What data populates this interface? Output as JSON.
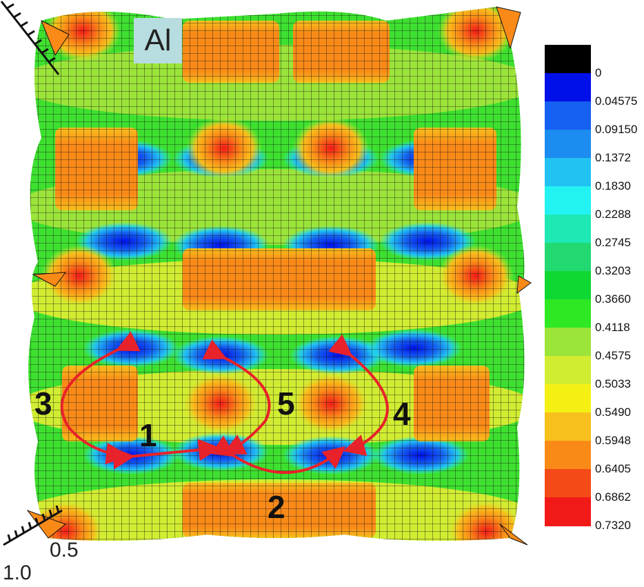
{
  "tag": "Al",
  "colorbar": {
    "labels": [
      "0",
      "0.04575",
      "0.09150",
      "0.1372",
      "0.1830",
      "0.2288",
      "0.2745",
      "0.3203",
      "0.3660",
      "0.4118",
      "0.4575",
      "0.5033",
      "0.5490",
      "0.5948",
      "0.6405",
      "0.6862",
      "0.7320"
    ],
    "colors": [
      "#000000",
      "#0010e8",
      "#1560f0",
      "#1c8cf0",
      "#22c2f2",
      "#22f2f2",
      "#1ee8b4",
      "#22d870",
      "#10d832",
      "#2ee824",
      "#9be43a",
      "#d2ec32",
      "#f4f014",
      "#f8c01c",
      "#fa8a18",
      "#f44a18",
      "#f21a18"
    ]
  },
  "path_labels": [
    "1",
    "2",
    "3",
    "4",
    "5"
  ],
  "axis_ticks": [
    "0.5",
    "1.0"
  ],
  "arrow_color": "#e8222a"
}
